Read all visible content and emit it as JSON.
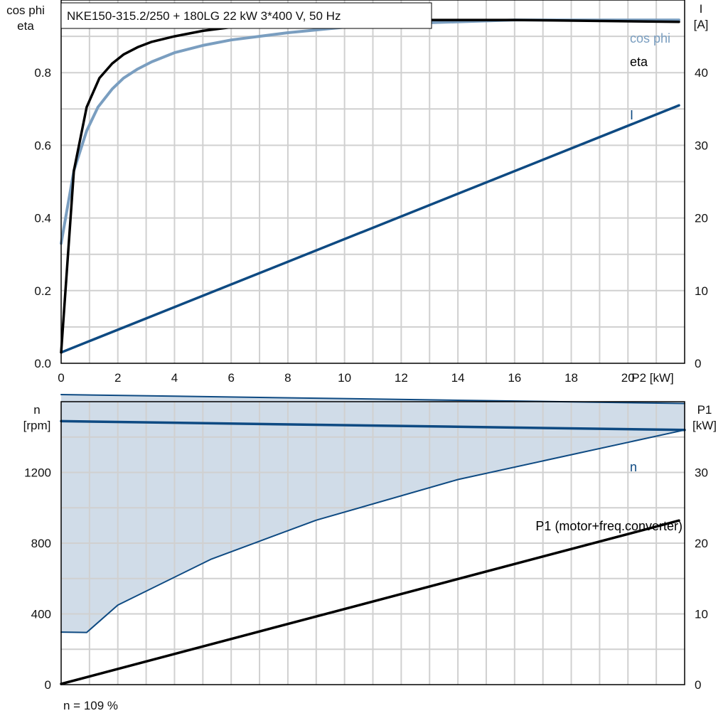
{
  "colors": {
    "grid": "#d0d0d0",
    "axis": "#000000",
    "eta": "#000000",
    "cosphi": "#7a9ec0",
    "current": "#0e4a82",
    "speed": "#0e4a82",
    "band_fill": "#d0dce8",
    "p1": "#000000"
  },
  "chart_data": [
    {
      "type": "line",
      "title": "NKE150-315.2/250 + 180LG   22 kW   3*400 V, 50 Hz",
      "xlabel": "P2 [kW]",
      "ylabel_left": [
        "cos phi",
        "eta"
      ],
      "ylabel_right": [
        "I",
        "[A]"
      ],
      "xlim": [
        0,
        22
      ],
      "ylim_left": [
        0,
        1.0
      ],
      "ylim_right": [
        0,
        50
      ],
      "x_ticks": [
        "0",
        "2",
        "4",
        "6",
        "8",
        "10",
        "12",
        "14",
        "16",
        "18",
        "20"
      ],
      "y_ticks_left": [
        "0.0",
        "0.2",
        "0.4",
        "0.6",
        "0.8"
      ],
      "y_ticks_right": [
        "0",
        "10",
        "20",
        "30",
        "40"
      ],
      "grid": true,
      "series": [
        {
          "name": "cos phi",
          "axis": "left",
          "x": [
            0,
            0.45,
            0.9,
            1.3,
            1.8,
            2.2,
            2.7,
            3.2,
            4,
            5,
            6,
            8,
            10,
            12,
            16,
            21.8
          ],
          "y": [
            0.33,
            0.53,
            0.64,
            0.705,
            0.755,
            0.785,
            0.81,
            0.83,
            0.855,
            0.875,
            0.89,
            0.91,
            0.925,
            0.935,
            0.945,
            0.945
          ]
        },
        {
          "name": "eta",
          "axis": "left",
          "x": [
            0,
            0.45,
            0.9,
            1.35,
            1.8,
            2.2,
            2.7,
            3.2,
            4,
            5,
            6,
            8,
            10,
            12,
            16,
            21.8
          ],
          "y": [
            0.03,
            0.53,
            0.705,
            0.785,
            0.825,
            0.85,
            0.87,
            0.885,
            0.9,
            0.915,
            0.925,
            0.935,
            0.94,
            0.945,
            0.945,
            0.94
          ]
        },
        {
          "name": "I",
          "axis": "right",
          "x": [
            0,
            21.8
          ],
          "y": [
            1.5,
            35.5
          ]
        }
      ]
    },
    {
      "type": "line",
      "xlim": [
        0,
        22
      ],
      "ylabel_left": [
        "n",
        "[rpm]"
      ],
      "ylabel_right": [
        "P1",
        "[kW]"
      ],
      "ylim_left": [
        0,
        1600
      ],
      "ylim_right": [
        0,
        40
      ],
      "y_ticks_left": [
        "0",
        "400",
        "800",
        "1200"
      ],
      "y_ticks_right": [
        "0",
        "10",
        "20",
        "30"
      ],
      "grid": true,
      "band": {
        "upper": {
          "x": [
            0,
            22
          ],
          "y": [
            1640,
            1590
          ]
        },
        "lower": {
          "x": [
            0,
            0.9,
            2,
            5.3,
            9,
            14,
            18,
            22
          ],
          "y": [
            297,
            295,
            450,
            710,
            930,
            1160,
            1300,
            1440
          ]
        }
      },
      "series": [
        {
          "name": "n",
          "axis": "left",
          "x": [
            0,
            22
          ],
          "y": [
            1490,
            1440
          ]
        },
        {
          "name": "P1 (motor+freq.converter)",
          "axis": "right",
          "x": [
            0,
            21.8
          ],
          "y": [
            0.1,
            23.2
          ]
        }
      ]
    }
  ],
  "footer": {
    "speed_note": "n = 109 %"
  }
}
